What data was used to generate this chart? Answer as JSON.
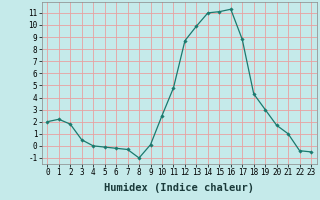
{
  "x": [
    0,
    1,
    2,
    3,
    4,
    5,
    6,
    7,
    8,
    9,
    10,
    11,
    12,
    13,
    14,
    15,
    16,
    17,
    18,
    19,
    20,
    21,
    22,
    23
  ],
  "y": [
    2,
    2.2,
    1.8,
    0.5,
    0.0,
    -0.1,
    -0.2,
    -0.3,
    -1.0,
    0.1,
    2.5,
    4.8,
    8.7,
    9.9,
    11.0,
    11.1,
    11.3,
    8.8,
    4.3,
    3.0,
    1.7,
    1.0,
    -0.4,
    -0.5
  ],
  "line_color": "#1a7a6e",
  "marker": "D",
  "marker_size": 1.8,
  "line_width": 0.9,
  "bg_color": "#c5eaea",
  "grid_color": "#e8a0a0",
  "xlabel": "Humidex (Indice chaleur)",
  "xlim": [
    -0.5,
    23.5
  ],
  "ylim": [
    -1.5,
    11.9
  ],
  "yticks": [
    -1,
    0,
    1,
    2,
    3,
    4,
    5,
    6,
    7,
    8,
    9,
    10,
    11
  ],
  "xticks": [
    0,
    1,
    2,
    3,
    4,
    5,
    6,
    7,
    8,
    9,
    10,
    11,
    12,
    13,
    14,
    15,
    16,
    17,
    18,
    19,
    20,
    21,
    22,
    23
  ],
  "tick_fontsize": 5.5,
  "label_fontsize": 7.5,
  "label_fontweight": "bold"
}
